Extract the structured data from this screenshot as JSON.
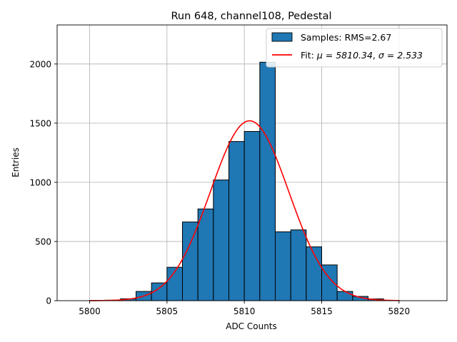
{
  "chart_data": {
    "type": "bar",
    "title": "Run 648, channel108, Pedestal",
    "xlabel": "ADC Counts",
    "ylabel": "Entries",
    "xlim": [
      5797.9,
      5823.1
    ],
    "ylim": [
      0,
      2330
    ],
    "xticks": [
      5800,
      5805,
      5810,
      5815,
      5820
    ],
    "yticks": [
      0,
      500,
      1000,
      1500,
      2000
    ],
    "grid": true,
    "legend_position": "top-right",
    "bin_edges": [
      5800,
      5801,
      5802,
      5803,
      5804,
      5805,
      5806,
      5807,
      5808,
      5809,
      5810,
      5811,
      5812,
      5813,
      5814,
      5815,
      5816,
      5817,
      5818,
      5819,
      5820
    ],
    "counts": [
      2,
      4,
      16,
      78,
      150,
      282,
      665,
      775,
      1020,
      1345,
      1430,
      2015,
      582,
      598,
      455,
      302,
      78,
      36,
      15,
      3
    ],
    "series": [
      {
        "name": "Samples: RMS=2.67",
        "kind": "histogram",
        "color": "#1f77b4",
        "edgecolor": "#000000"
      },
      {
        "name_prefix": "Fit: ",
        "mu_label": "μ = 5810.34",
        "sep": ", ",
        "sigma_label": "σ = 2.533",
        "kind": "gaussian",
        "color": "#ff0000",
        "mu": 5810.34,
        "sigma": 2.533,
        "amplitude": 1520,
        "x_range": [
          5800,
          5820
        ]
      }
    ]
  }
}
